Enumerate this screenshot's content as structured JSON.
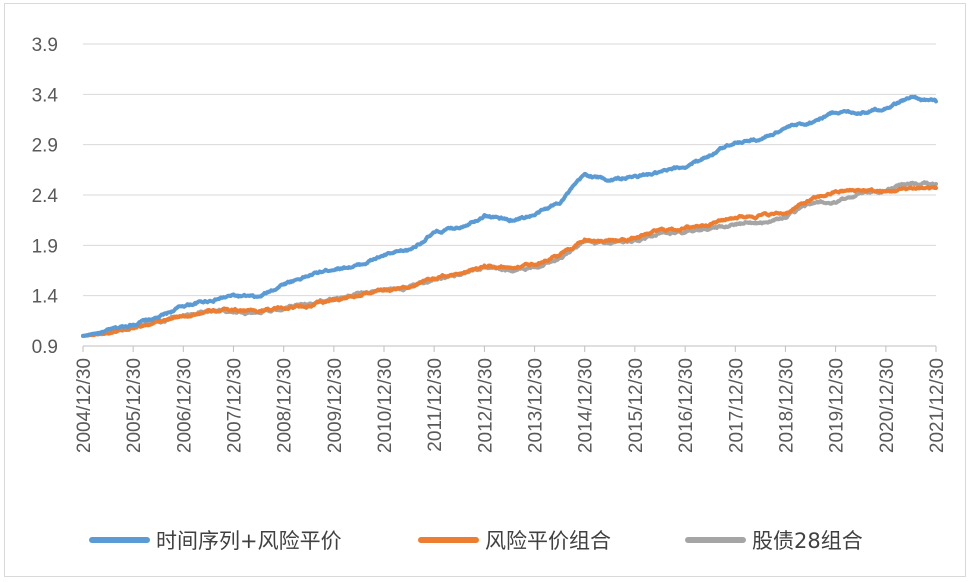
{
  "chart_data": {
    "type": "line",
    "title": "",
    "xlabel": "",
    "ylabel": "",
    "ylim": [
      0.9,
      3.9
    ],
    "yticks": [
      "0.9",
      "1.4",
      "1.9",
      "2.4",
      "2.9",
      "3.4",
      "3.9"
    ],
    "xticks": [
      "2004/12/30",
      "2005/12/30",
      "2006/12/30",
      "2007/12/30",
      "2008/12/30",
      "2009/12/30",
      "2010/12/30",
      "2011/12/30",
      "2012/12/30",
      "2013/12/30",
      "2014/12/30",
      "2015/12/30",
      "2016/12/30",
      "2017/12/30",
      "2018/12/30",
      "2019/12/30",
      "2020/12/30",
      "2021/12/30"
    ],
    "grid": "horizontal",
    "legend_position": "bottom",
    "series": [
      {
        "name": "时间序列+风险平价",
        "color": "#5b9bd5",
        "points": [
          [
            "2004/12/30",
            1.0
          ],
          [
            "2005/06/30",
            1.05
          ],
          [
            "2005/12/30",
            1.12
          ],
          [
            "2006/06/30",
            1.18
          ],
          [
            "2006/12/30",
            1.3
          ],
          [
            "2007/06/30",
            1.35
          ],
          [
            "2007/12/30",
            1.4
          ],
          [
            "2008/06/30",
            1.38
          ],
          [
            "2008/12/30",
            1.52
          ],
          [
            "2009/06/30",
            1.6
          ],
          [
            "2009/12/30",
            1.67
          ],
          [
            "2010/06/30",
            1.7
          ],
          [
            "2010/12/30",
            1.8
          ],
          [
            "2011/06/30",
            1.85
          ],
          [
            "2011/12/30",
            2.02
          ],
          [
            "2012/06/30",
            2.08
          ],
          [
            "2012/12/30",
            2.2
          ],
          [
            "2013/06/30",
            2.15
          ],
          [
            "2013/12/30",
            2.2
          ],
          [
            "2014/06/30",
            2.33
          ],
          [
            "2014/12/30",
            2.6
          ],
          [
            "2015/06/30",
            2.55
          ],
          [
            "2015/12/30",
            2.58
          ],
          [
            "2016/06/30",
            2.62
          ],
          [
            "2016/12/30",
            2.68
          ],
          [
            "2017/06/30",
            2.8
          ],
          [
            "2017/12/30",
            2.93
          ],
          [
            "2018/06/30",
            2.95
          ],
          [
            "2018/12/30",
            3.07
          ],
          [
            "2019/06/30",
            3.12
          ],
          [
            "2019/12/30",
            3.23
          ],
          [
            "2020/06/30",
            3.22
          ],
          [
            "2020/12/30",
            3.27
          ],
          [
            "2021/06/30",
            3.37
          ],
          [
            "2021/12/30",
            3.33
          ]
        ]
      },
      {
        "name": "风险平价组合",
        "color": "#ed7d31",
        "points": [
          [
            "2004/12/30",
            1.0
          ],
          [
            "2005/06/30",
            1.03
          ],
          [
            "2005/12/30",
            1.09
          ],
          [
            "2006/06/30",
            1.13
          ],
          [
            "2006/12/30",
            1.2
          ],
          [
            "2007/06/30",
            1.24
          ],
          [
            "2007/12/30",
            1.26
          ],
          [
            "2008/06/30",
            1.25
          ],
          [
            "2008/12/30",
            1.28
          ],
          [
            "2009/06/30",
            1.3
          ],
          [
            "2009/12/30",
            1.36
          ],
          [
            "2010/06/30",
            1.4
          ],
          [
            "2010/12/30",
            1.46
          ],
          [
            "2011/06/30",
            1.49
          ],
          [
            "2011/12/30",
            1.57
          ],
          [
            "2012/06/30",
            1.62
          ],
          [
            "2012/12/30",
            1.7
          ],
          [
            "2013/06/30",
            1.68
          ],
          [
            "2013/12/30",
            1.72
          ],
          [
            "2014/06/30",
            1.8
          ],
          [
            "2014/12/30",
            1.96
          ],
          [
            "2015/06/30",
            1.94
          ],
          [
            "2015/12/30",
            1.97
          ],
          [
            "2016/06/30",
            2.05
          ],
          [
            "2016/12/30",
            2.07
          ],
          [
            "2017/06/30",
            2.12
          ],
          [
            "2017/12/30",
            2.18
          ],
          [
            "2018/06/30",
            2.2
          ],
          [
            "2018/12/30",
            2.22
          ],
          [
            "2019/06/30",
            2.35
          ],
          [
            "2019/12/30",
            2.43
          ],
          [
            "2020/06/30",
            2.45
          ],
          [
            "2020/12/30",
            2.43
          ],
          [
            "2021/06/30",
            2.47
          ],
          [
            "2021/12/30",
            2.47
          ]
        ]
      },
      {
        "name": "股债28组合",
        "color": "#a5a5a5",
        "points": [
          [
            "2004/12/30",
            1.0
          ],
          [
            "2005/06/30",
            1.03
          ],
          [
            "2005/12/30",
            1.1
          ],
          [
            "2006/06/30",
            1.14
          ],
          [
            "2006/12/30",
            1.21
          ],
          [
            "2007/06/30",
            1.25
          ],
          [
            "2007/12/30",
            1.25
          ],
          [
            "2008/06/30",
            1.23
          ],
          [
            "2008/12/30",
            1.28
          ],
          [
            "2009/06/30",
            1.32
          ],
          [
            "2009/12/30",
            1.37
          ],
          [
            "2010/06/30",
            1.42
          ],
          [
            "2010/12/30",
            1.45
          ],
          [
            "2011/06/30",
            1.48
          ],
          [
            "2011/12/30",
            1.56
          ],
          [
            "2012/06/30",
            1.61
          ],
          [
            "2012/12/30",
            1.68
          ],
          [
            "2013/06/30",
            1.65
          ],
          [
            "2013/12/30",
            1.69
          ],
          [
            "2014/06/30",
            1.78
          ],
          [
            "2014/12/30",
            1.94
          ],
          [
            "2015/06/30",
            1.91
          ],
          [
            "2015/12/30",
            1.95
          ],
          [
            "2016/06/30",
            2.01
          ],
          [
            "2016/12/30",
            2.03
          ],
          [
            "2017/06/30",
            2.07
          ],
          [
            "2017/12/30",
            2.12
          ],
          [
            "2018/06/30",
            2.12
          ],
          [
            "2018/12/30",
            2.18
          ],
          [
            "2019/06/30",
            2.32
          ],
          [
            "2019/12/30",
            2.32
          ],
          [
            "2020/06/30",
            2.42
          ],
          [
            "2020/12/30",
            2.45
          ],
          [
            "2021/06/30",
            2.52
          ],
          [
            "2021/12/30",
            2.51
          ]
        ]
      }
    ]
  }
}
